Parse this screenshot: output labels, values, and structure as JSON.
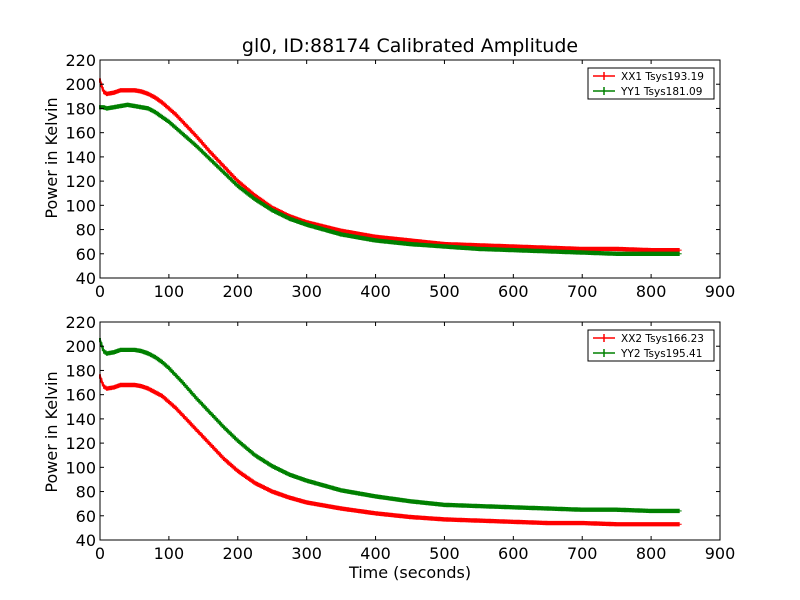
{
  "chart_data": [
    {
      "type": "line",
      "title": "gl0, ID:88174 Calibrated Amplitude",
      "xlabel": "",
      "ylabel": "Power in Kelvin",
      "xlim": [
        0,
        900
      ],
      "ylim": [
        40,
        220
      ],
      "xticks": [
        "0",
        "100",
        "200",
        "300",
        "400",
        "500",
        "600",
        "700",
        "800",
        "900"
      ],
      "yticks": [
        "40",
        "60",
        "80",
        "100",
        "120",
        "140",
        "160",
        "180",
        "200",
        "220"
      ],
      "legend_position": "top-right",
      "grid": false,
      "error_bars": true,
      "series": [
        {
          "name": "XX1 Tsys193.19",
          "color": "#ff0000",
          "x": [
            0,
            5,
            10,
            20,
            30,
            40,
            50,
            60,
            70,
            80,
            90,
            100,
            110,
            120,
            140,
            160,
            180,
            200,
            225,
            250,
            275,
            300,
            350,
            400,
            450,
            500,
            550,
            600,
            650,
            700,
            750,
            800,
            840
          ],
          "y": [
            203,
            194,
            192,
            193,
            195,
            195,
            195,
            194,
            192,
            189,
            185,
            180,
            175,
            169,
            157,
            144,
            132,
            120,
            108,
            98,
            91,
            86,
            79,
            74,
            71,
            68,
            67,
            66,
            65,
            64,
            64,
            63,
            63
          ]
        },
        {
          "name": "YY1 Tsys181.09",
          "color": "#008000",
          "x": [
            0,
            5,
            10,
            20,
            30,
            40,
            50,
            60,
            70,
            80,
            90,
            100,
            110,
            120,
            140,
            160,
            180,
            200,
            225,
            250,
            275,
            300,
            350,
            400,
            450,
            500,
            550,
            600,
            650,
            700,
            750,
            800,
            840
          ],
          "y": [
            181,
            181,
            180,
            181,
            182,
            183,
            182,
            181,
            180,
            177,
            173,
            169,
            164,
            159,
            149,
            138,
            127,
            116,
            105,
            96,
            89,
            84,
            76,
            71,
            68,
            66,
            64,
            63,
            62,
            61,
            60,
            60,
            60
          ]
        }
      ]
    },
    {
      "type": "line",
      "title": "",
      "xlabel": "Time (seconds)",
      "ylabel": "Power in Kelvin",
      "xlim": [
        0,
        900
      ],
      "ylim": [
        40,
        220
      ],
      "xticks": [
        "0",
        "100",
        "200",
        "300",
        "400",
        "500",
        "600",
        "700",
        "800",
        "900"
      ],
      "yticks": [
        "40",
        "60",
        "80",
        "100",
        "120",
        "140",
        "160",
        "180",
        "200",
        "220"
      ],
      "legend_position": "top-right",
      "grid": false,
      "error_bars": true,
      "series": [
        {
          "name": "XX2 Tsys166.23",
          "color": "#ff0000",
          "x": [
            0,
            5,
            10,
            20,
            30,
            40,
            50,
            60,
            70,
            80,
            90,
            100,
            110,
            120,
            140,
            160,
            180,
            200,
            225,
            250,
            275,
            300,
            350,
            400,
            450,
            500,
            550,
            600,
            650,
            700,
            750,
            800,
            840
          ],
          "y": [
            175,
            167,
            165,
            166,
            168,
            168,
            168,
            167,
            165,
            162,
            159,
            154,
            149,
            143,
            131,
            119,
            107,
            97,
            87,
            80,
            75,
            71,
            66,
            62,
            59,
            57,
            56,
            55,
            54,
            54,
            53,
            53,
            53
          ]
        },
        {
          "name": "YY2 Tsys195.41",
          "color": "#008000",
          "x": [
            0,
            5,
            10,
            20,
            30,
            40,
            50,
            60,
            70,
            80,
            90,
            100,
            110,
            120,
            140,
            160,
            180,
            200,
            225,
            250,
            275,
            300,
            350,
            400,
            450,
            500,
            550,
            600,
            650,
            700,
            750,
            800,
            840
          ],
          "y": [
            205,
            196,
            194,
            195,
            197,
            197,
            197,
            196,
            194,
            191,
            187,
            182,
            176,
            170,
            157,
            145,
            133,
            122,
            110,
            101,
            94,
            89,
            81,
            76,
            72,
            69,
            68,
            67,
            66,
            65,
            65,
            64,
            64
          ]
        }
      ]
    }
  ]
}
